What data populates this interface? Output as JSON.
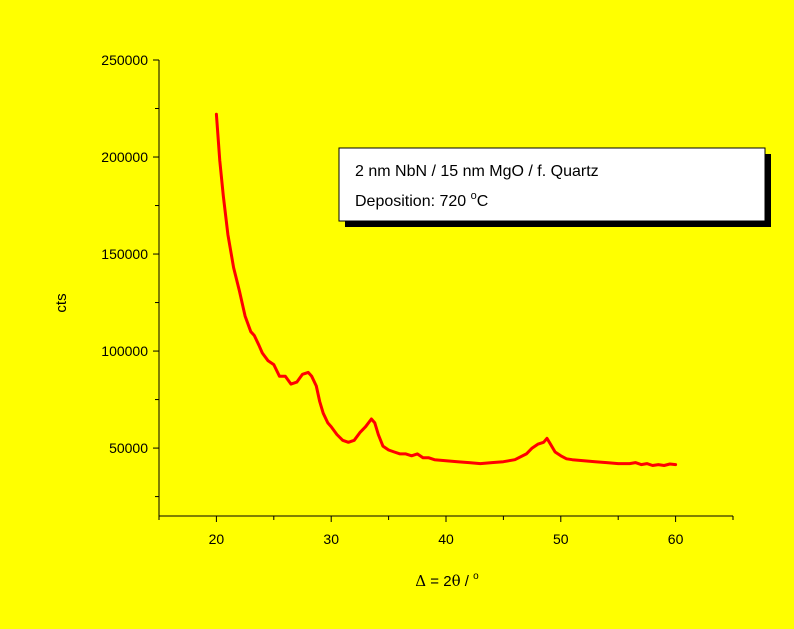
{
  "colors": {
    "background": "#ffff00",
    "series": "#ff0000",
    "axis": "#000000",
    "legend_box": "#ffffff",
    "legend_shadow": "#000000"
  },
  "chart_data": {
    "type": "line",
    "title": "",
    "xlabel": {
      "delta": "Δ",
      "equals": " = 2",
      "theta": "θ",
      "slash": " / ",
      "degree": "o"
    },
    "ylabel": "cts",
    "xlim": [
      15,
      65
    ],
    "ylim": [
      15000,
      250000
    ],
    "x_ticks": [
      "20",
      "30",
      "40",
      "50",
      "60"
    ],
    "y_ticks": [
      "50000",
      "100000",
      "150000",
      "200000",
      "250000"
    ],
    "x_tick_values": [
      20,
      30,
      40,
      50,
      60
    ],
    "y_tick_values": [
      50000,
      100000,
      150000,
      200000,
      250000
    ],
    "x_minor_step": 5,
    "y_minor_step": 25000,
    "grid": false,
    "legend": {
      "placement": "top-right",
      "line1": "2 nm NbN / 15 nm MgO / f. Quartz",
      "line2_prefix": "Deposition: 720 ",
      "line2_degree": "o",
      "line2_suffix": "C"
    },
    "series": [
      {
        "x": [
          20.0,
          20.3,
          20.6,
          21.0,
          21.5,
          22.0,
          22.5,
          23.0,
          23.3,
          23.7,
          24.0,
          24.5,
          25.0,
          25.5,
          26.0,
          26.5,
          27.0,
          27.5,
          28.0,
          28.3,
          28.7,
          29.0,
          29.3,
          29.7,
          30.0,
          30.5,
          31.0,
          31.5,
          32.0,
          32.5,
          33.0,
          33.5,
          33.8,
          34.1,
          34.5,
          35.0,
          35.5,
          36.0,
          36.5,
          37.0,
          37.5,
          38.0,
          38.5,
          39.0,
          40.0,
          41.0,
          42.0,
          43.0,
          44.0,
          45.0,
          46.0,
          47.0,
          47.5,
          48.0,
          48.5,
          48.8,
          49.1,
          49.5,
          50.0,
          50.5,
          51.0,
          52.0,
          53.0,
          54.0,
          55.0,
          56.0,
          56.5,
          57.0,
          57.5,
          58.0,
          58.5,
          59.0,
          59.5,
          60.0
        ],
        "y": [
          222000,
          198000,
          180000,
          160000,
          143000,
          131000,
          118000,
          110000,
          108000,
          103000,
          99000,
          95000,
          93000,
          87000,
          87000,
          83000,
          84000,
          88000,
          89000,
          87000,
          82000,
          74000,
          68000,
          63000,
          61000,
          57000,
          54000,
          53000,
          54000,
          58000,
          61000,
          65000,
          63000,
          57000,
          51000,
          49000,
          48000,
          47000,
          47000,
          46000,
          47000,
          45000,
          45000,
          44000,
          43500,
          43000,
          42500,
          42000,
          42500,
          43000,
          44000,
          47000,
          50000,
          52000,
          53000,
          55000,
          52000,
          48000,
          46000,
          44500,
          44000,
          43500,
          43000,
          42500,
          42000,
          42000,
          42500,
          41500,
          42000,
          41000,
          41500,
          41000,
          41800,
          41500
        ]
      }
    ]
  }
}
